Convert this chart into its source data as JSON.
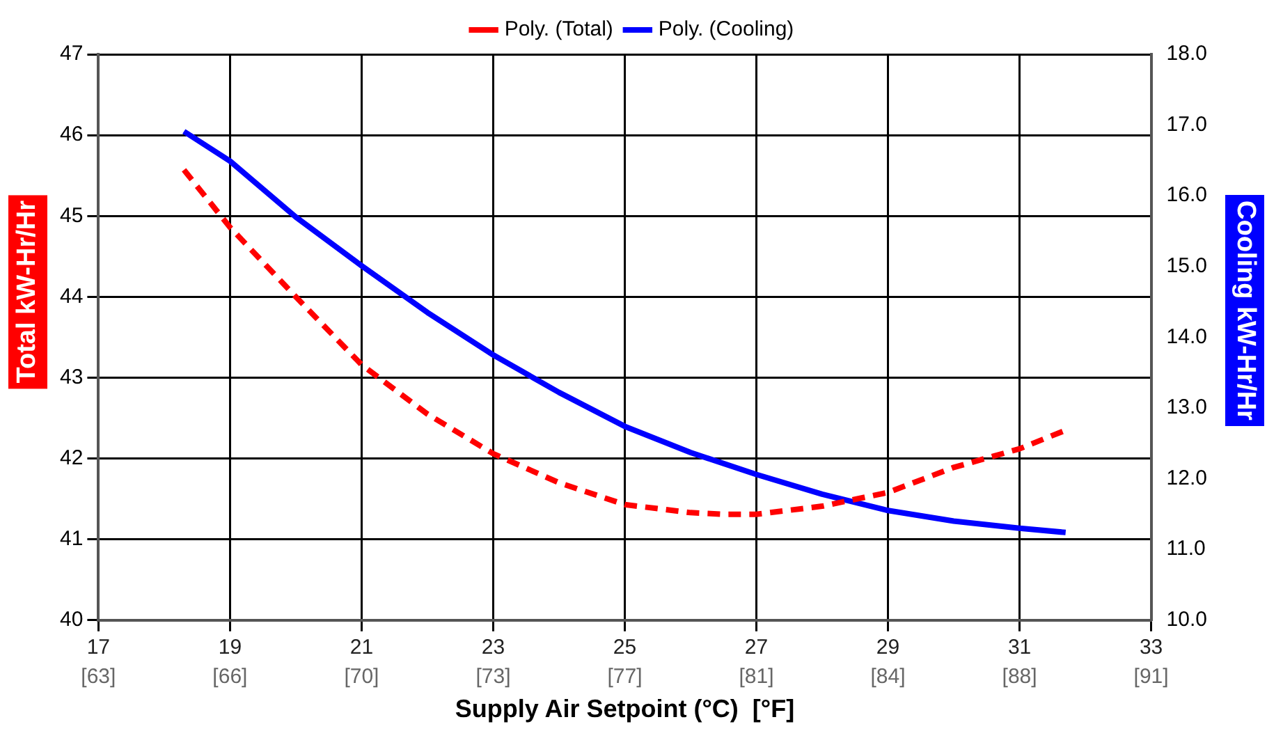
{
  "chart_data": {
    "type": "line",
    "xlabel": "Supply Air Setpoint (°C)  [°F]",
    "ylabel": "Total kW-Hr/Hr",
    "y2label": "Cooling kW-Hr/Hr",
    "series": [
      {
        "name": "Poly. (Total)",
        "color": "#ff0000",
        "line_style": "dashed",
        "x": [
          18.3,
          19,
          20,
          21,
          22,
          23,
          24,
          25,
          26,
          26.5,
          27,
          28,
          29,
          30,
          31,
          31.7
        ],
        "values": [
          45.57,
          44.86,
          44.0,
          43.16,
          42.55,
          42.06,
          41.7,
          41.43,
          41.33,
          41.31,
          41.31,
          41.41,
          41.58,
          41.89,
          42.12,
          42.35
        ]
      },
      {
        "name": "Poly. (Cooling)",
        "color": "#0000ff",
        "line_style": "solid",
        "axis": "y2",
        "x": [
          18.3,
          19,
          20,
          21,
          22,
          23,
          24,
          25,
          26,
          27,
          28,
          29,
          30,
          31,
          31.7
        ],
        "values": [
          16.91,
          16.49,
          15.7,
          15.01,
          14.35,
          13.75,
          13.22,
          12.74,
          12.37,
          12.06,
          11.78,
          11.55,
          11.4,
          11.3,
          11.24
        ]
      }
    ],
    "xlim": [
      17,
      33
    ],
    "xticks": [
      17,
      19,
      21,
      23,
      25,
      27,
      29,
      31,
      33
    ],
    "x2lim": [
      62.6,
      91.4
    ],
    "x2ticks": [
      {
        "value": 62.6,
        "label": "[63]"
      },
      {
        "value": 66.2,
        "label": "[66]"
      },
      {
        "value": 69.8,
        "label": "[70]"
      },
      {
        "value": 73.4,
        "label": "[73]"
      },
      {
        "value": 77,
        "label": "[77]"
      },
      {
        "value": 80.6,
        "label": "[81]"
      },
      {
        "value": 84.2,
        "label": "[84]"
      },
      {
        "value": 87.8,
        "label": "[88]"
      },
      {
        "value": 91.4,
        "label": "[91]"
      }
    ],
    "ylim": [
      40,
      47
    ],
    "yticks": [
      40,
      41,
      42,
      43,
      44,
      45,
      46,
      47
    ],
    "y2lim": [
      10,
      18
    ],
    "y2ticks": [
      {
        "value": 10,
        "label": "10.0"
      },
      {
        "value": 11,
        "label": "11.0"
      },
      {
        "value": 12,
        "label": "12.0"
      },
      {
        "value": 13,
        "label": "13.0"
      },
      {
        "value": 14,
        "label": "14.0"
      },
      {
        "value": 15,
        "label": "15.0"
      },
      {
        "value": 16,
        "label": "16.0"
      },
      {
        "value": 17,
        "label": "17.0"
      },
      {
        "value": 18,
        "label": "18.0"
      }
    ],
    "grid": true,
    "legend": "top",
    "marker": "none"
  }
}
